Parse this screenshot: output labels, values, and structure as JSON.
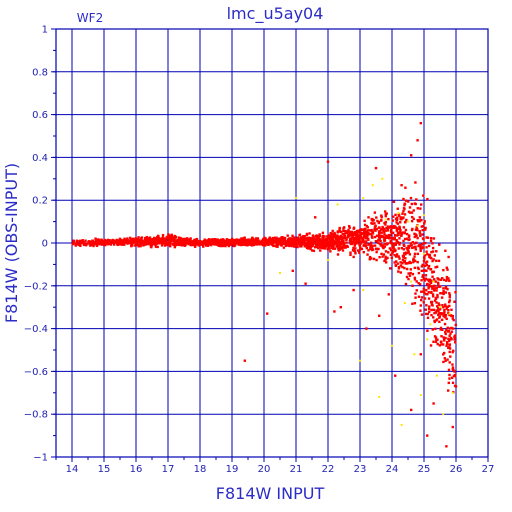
{
  "chart_data": {
    "type": "scatter",
    "title": "lmc_u5ay04",
    "corner_label": "WF2",
    "xlabel": "F814W INPUT",
    "ylabel": "F814W (OBS-INPUT)",
    "xlim": [
      13.5,
      27
    ],
    "ylim": [
      -1,
      1
    ],
    "x_ticks": [
      14,
      15,
      16,
      17,
      18,
      19,
      20,
      21,
      22,
      23,
      24,
      25,
      26,
      27
    ],
    "y_ticks": [
      -1,
      -0.8,
      -0.6,
      -0.4,
      -0.2,
      0,
      0.2,
      0.4,
      0.6,
      0.8,
      1
    ],
    "x_tick_labels": [
      "14",
      "15",
      "16",
      "17",
      "18",
      "19",
      "20",
      "21",
      "22",
      "23",
      "24",
      "25",
      "26",
      "27"
    ],
    "y_tick_labels": [
      "−1",
      "−0.8",
      "−0.6",
      "−0.4",
      "−0.2",
      "0",
      "0.2",
      "0.4",
      "0.6",
      "0.8",
      "1"
    ],
    "grid": true,
    "colors": {
      "frame": "#0000b4",
      "grid": "#0000b4",
      "points": "#ff0000",
      "highlight_points": "#ffe600",
      "text": "#1f1fb0"
    },
    "series": [
      {
        "color": "#ff0000",
        "envelope": [
          {
            "x": 14.0,
            "lo": -0.02,
            "hi": 0.02
          },
          {
            "x": 16.0,
            "lo": -0.02,
            "hi": 0.03
          },
          {
            "x": 17.0,
            "lo": -0.03,
            "hi": 0.05
          },
          {
            "x": 18.0,
            "lo": -0.02,
            "hi": 0.02
          },
          {
            "x": 20.0,
            "lo": -0.02,
            "hi": 0.03
          },
          {
            "x": 21.0,
            "lo": -0.03,
            "hi": 0.04
          },
          {
            "x": 22.0,
            "lo": -0.05,
            "hi": 0.06
          },
          {
            "x": 23.0,
            "lo": -0.08,
            "hi": 0.12
          },
          {
            "x": 24.0,
            "lo": -0.15,
            "hi": 0.22
          },
          {
            "x": 24.6,
            "lo": -0.3,
            "hi": 0.35
          },
          {
            "x": 25.0,
            "lo": -0.45,
            "hi": 0.3
          },
          {
            "x": 25.5,
            "lo": -0.7,
            "hi": 0.1
          },
          {
            "x": 26.0,
            "lo": -0.88,
            "hi": -0.1
          }
        ],
        "outliers": [
          [
            22.0,
            0.38
          ],
          [
            24.9,
            0.56
          ],
          [
            24.8,
            0.48
          ],
          [
            24.6,
            0.41
          ],
          [
            20.9,
            -0.13
          ],
          [
            21.3,
            -0.19
          ],
          [
            22.2,
            -0.32
          ],
          [
            22.4,
            -0.3
          ],
          [
            23.2,
            -0.4
          ],
          [
            23.6,
            -0.34
          ],
          [
            19.4,
            -0.55
          ],
          [
            20.1,
            -0.33
          ],
          [
            24.1,
            -0.62
          ],
          [
            24.6,
            -0.78
          ],
          [
            25.1,
            -0.9
          ],
          [
            25.7,
            -0.95
          ],
          [
            26.0,
            -0.67
          ],
          [
            25.9,
            -0.86
          ],
          [
            24.3,
            0.27
          ],
          [
            23.5,
            0.35
          ],
          [
            25.3,
            -0.75
          ],
          [
            24.9,
            -0.52
          ],
          [
            23.9,
            -0.24
          ],
          [
            22.8,
            -0.22
          ],
          [
            21.6,
            0.12
          ]
        ]
      },
      {
        "color": "#ffe600",
        "points": [
          [
            21.0,
            0.21
          ],
          [
            22.3,
            0.18
          ],
          [
            23.1,
            0.21
          ],
          [
            23.4,
            0.27
          ],
          [
            23.8,
            0.11
          ],
          [
            24.2,
            0.14
          ],
          [
            24.5,
            0.1
          ],
          [
            24.8,
            0.08
          ],
          [
            25.0,
            -0.05
          ],
          [
            25.3,
            -0.18
          ],
          [
            25.5,
            -0.3
          ],
          [
            25.2,
            -0.38
          ],
          [
            24.7,
            -0.52
          ],
          [
            25.4,
            -0.62
          ],
          [
            25.9,
            -0.7
          ],
          [
            23.6,
            -0.72
          ],
          [
            24.9,
            -0.71
          ],
          [
            25.6,
            -0.8
          ],
          [
            25.1,
            -0.45
          ],
          [
            24.4,
            -0.28
          ],
          [
            23.0,
            -0.55
          ],
          [
            22.0,
            -0.08
          ],
          [
            20.5,
            -0.14
          ],
          [
            25.8,
            -0.33
          ],
          [
            24.6,
            -0.18
          ],
          [
            23.7,
            0.3
          ],
          [
            24.0,
            -0.48
          ],
          [
            23.1,
            -0.22
          ],
          [
            25.0,
            0.13
          ],
          [
            24.3,
            -0.85
          ]
        ]
      }
    ]
  }
}
